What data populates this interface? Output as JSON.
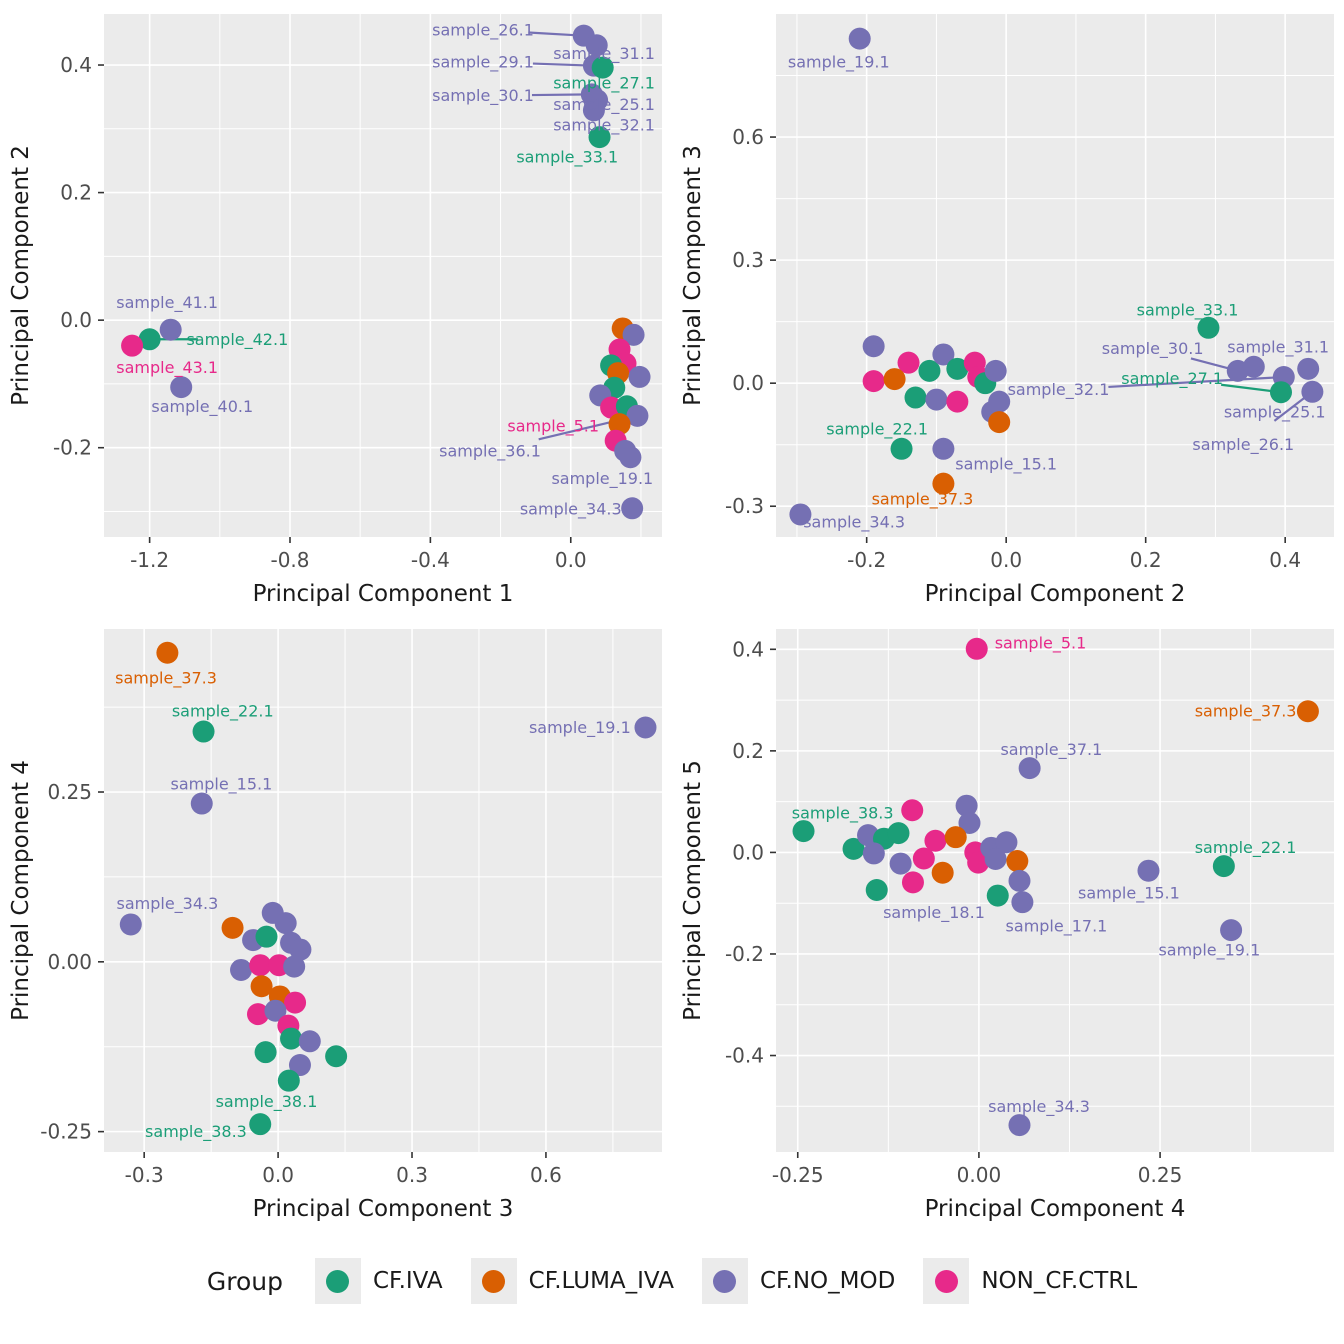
{
  "style": {
    "panel_bg": "#EBEBEB",
    "grid_color": "#FFFFFF",
    "tick_text_color": "#4D4D4D",
    "axis_title_color": "#1A1A1A",
    "tick_mark_color": "#333333"
  },
  "groups": [
    {
      "name": "CF.IVA",
      "color": "#1B9E77"
    },
    {
      "name": "CF.LUMA_IVA",
      "color": "#D95F02"
    },
    {
      "name": "CF.NO_MOD",
      "color": "#7570B3"
    },
    {
      "name": "NON_CF.CTRL",
      "color": "#E7298A"
    }
  ],
  "legend": {
    "title": "Group",
    "entries": [
      {
        "label": "CF.IVA",
        "color": "#1B9E77"
      },
      {
        "label": "CF.LUMA_IVA",
        "color": "#D95F02"
      },
      {
        "label": "CF.NO_MOD",
        "color": "#7570B3"
      },
      {
        "label": "NON_CF.CTRL",
        "color": "#E7298A"
      }
    ]
  },
  "point_format": "[x, y, group_index] or [x, y, group_index, label, label_x, label_y, leader_line]",
  "chart_data": [
    {
      "type": "scatter",
      "xlabel": "Principal Component 1",
      "ylabel": "Principal Component 2",
      "xlim": [
        -1.33,
        0.26
      ],
      "ylim": [
        -0.34,
        0.48
      ],
      "xticks": {
        "values": [
          -1.2,
          -0.8,
          -0.4,
          0.0
        ],
        "labels": [
          "-1.2",
          "-0.8",
          "-0.4",
          "0.0"
        ]
      },
      "yticks": {
        "values": [
          -0.2,
          0.0,
          0.2,
          0.4
        ],
        "labels": [
          "-0.2",
          "0.0",
          "0.2",
          "0.4"
        ]
      },
      "grid": true,
      "points": [
        [
          0.037,
          0.446,
          2,
          "sample_26.1",
          -0.25,
          0.455,
          1
        ],
        [
          0.074,
          0.431,
          2,
          "sample_31.1",
          0.095,
          0.418,
          0
        ],
        [
          0.066,
          0.399,
          2,
          "sample_29.1",
          -0.25,
          0.405,
          1
        ],
        [
          0.091,
          0.396,
          0,
          "sample_27.1",
          0.095,
          0.372,
          0
        ],
        [
          0.06,
          0.354,
          2,
          "sample_30.1",
          -0.25,
          0.352,
          1
        ],
        [
          0.075,
          0.345,
          2,
          "sample_25.1",
          0.095,
          0.338,
          0
        ],
        [
          0.066,
          0.329,
          2,
          "sample_32.1",
          0.095,
          0.306,
          0
        ],
        [
          0.082,
          0.287,
          0,
          "sample_33.1",
          -0.01,
          0.256,
          0
        ],
        [
          -1.14,
          -0.015,
          2,
          "sample_41.1",
          -1.15,
          0.028,
          0
        ],
        [
          -1.2,
          -0.03,
          0,
          "sample_42.1",
          -0.95,
          -0.03,
          1
        ],
        [
          -1.25,
          -0.04,
          3,
          "sample_43.1",
          -1.15,
          -0.074,
          0
        ],
        [
          -1.11,
          -0.105,
          2,
          "sample_40.1",
          -1.05,
          -0.135,
          0
        ],
        [
          0.148,
          -0.013,
          1
        ],
        [
          0.179,
          -0.023,
          2
        ],
        [
          0.139,
          -0.046,
          3
        ],
        [
          0.156,
          -0.068,
          3
        ],
        [
          0.115,
          -0.071,
          0
        ],
        [
          0.135,
          -0.083,
          1
        ],
        [
          0.196,
          -0.089,
          2
        ],
        [
          0.124,
          -0.106,
          0
        ],
        [
          0.084,
          -0.118,
          2
        ],
        [
          0.115,
          -0.137,
          3
        ],
        [
          0.16,
          -0.135,
          0
        ],
        [
          0.19,
          -0.15,
          2,
          "sample_36.1",
          -0.23,
          -0.205,
          1
        ],
        [
          0.139,
          -0.163,
          1
        ],
        [
          0.128,
          -0.189,
          3,
          "sample_5.1",
          -0.05,
          -0.166,
          0
        ],
        [
          0.155,
          -0.205,
          2
        ],
        [
          0.17,
          -0.215,
          2,
          "sample_19.1",
          0.09,
          -0.248,
          0
        ],
        [
          0.175,
          -0.295,
          2,
          "sample_34.3",
          0.0,
          -0.296,
          0
        ]
      ]
    },
    {
      "type": "scatter",
      "xlabel": "Principal Component 2",
      "ylabel": "Principal Component 3",
      "xlim": [
        -0.33,
        0.47
      ],
      "ylim": [
        -0.375,
        0.9
      ],
      "xticks": {
        "values": [
          -0.2,
          0.0,
          0.2,
          0.4
        ],
        "labels": [
          "-0.2",
          "0.0",
          "0.2",
          "0.4"
        ]
      },
      "yticks": {
        "values": [
          -0.3,
          0.0,
          0.3,
          0.6
        ],
        "labels": [
          "-0.3",
          "0.0",
          "0.3",
          "0.6"
        ]
      },
      "grid": true,
      "points": [
        [
          -0.21,
          0.84,
          2,
          "sample_19.1",
          -0.24,
          0.783,
          0
        ],
        [
          -0.19,
          0.09,
          2
        ],
        [
          -0.14,
          0.05,
          3
        ],
        [
          -0.19,
          0.005,
          3
        ],
        [
          -0.16,
          0.01,
          1
        ],
        [
          -0.11,
          0.03,
          0
        ],
        [
          -0.09,
          0.07,
          2
        ],
        [
          -0.13,
          -0.035,
          0
        ],
        [
          -0.1,
          -0.04,
          2
        ],
        [
          -0.07,
          0.035,
          0
        ],
        [
          -0.07,
          -0.045,
          3
        ],
        [
          -0.045,
          0.05,
          3
        ],
        [
          -0.04,
          0.015,
          3
        ],
        [
          -0.03,
          0.0,
          0
        ],
        [
          -0.015,
          0.03,
          2
        ],
        [
          -0.02,
          -0.07,
          2
        ],
        [
          -0.01,
          -0.045,
          2
        ],
        [
          -0.01,
          -0.095,
          1
        ],
        [
          -0.15,
          -0.16,
          0,
          "sample_22.1",
          -0.185,
          -0.112,
          0
        ],
        [
          -0.09,
          -0.16,
          2,
          "sample_15.1",
          0.0,
          -0.197,
          0
        ],
        [
          -0.09,
          -0.245,
          1,
          "sample_37.3",
          -0.12,
          -0.282,
          0
        ],
        [
          -0.295,
          -0.32,
          2,
          "sample_34.3",
          -0.218,
          -0.339,
          0
        ],
        [
          0.29,
          0.135,
          0,
          "sample_33.1",
          0.26,
          0.178,
          0
        ],
        [
          0.332,
          0.03,
          2,
          "sample_30.1",
          0.21,
          0.085,
          1
        ],
        [
          0.355,
          0.04,
          2,
          "sample_31.1",
          0.39,
          0.088,
          0
        ],
        [
          0.398,
          0.015,
          2,
          "sample_32.1",
          0.075,
          -0.016,
          1
        ],
        [
          0.394,
          -0.022,
          0,
          "sample_27.1",
          0.238,
          0.011,
          1
        ],
        [
          0.433,
          0.035,
          2,
          "sample_25.1",
          0.385,
          -0.07,
          0
        ],
        [
          0.439,
          -0.021,
          2,
          "sample_26.1",
          0.34,
          -0.15,
          1
        ]
      ]
    },
    {
      "type": "scatter",
      "xlabel": "Principal Component 3",
      "ylabel": "Principal Component 4",
      "xlim": [
        -0.39,
        0.86
      ],
      "ylim": [
        -0.28,
        0.49
      ],
      "xticks": {
        "values": [
          -0.3,
          0.0,
          0.3,
          0.6
        ],
        "labels": [
          "-0.3",
          "0.0",
          "0.3",
          "0.6"
        ]
      },
      "yticks": {
        "values": [
          -0.25,
          0.0,
          0.25
        ],
        "labels": [
          "-0.25",
          "0.00",
          "0.25"
        ]
      },
      "grid": true,
      "points": [
        [
          -0.248,
          0.455,
          1,
          "sample_37.3",
          -0.251,
          0.418,
          0
        ],
        [
          -0.167,
          0.339,
          0,
          "sample_22.1",
          -0.124,
          0.369,
          0
        ],
        [
          0.823,
          0.345,
          2,
          "sample_19.1",
          0.676,
          0.345,
          0
        ],
        [
          -0.171,
          0.233,
          2,
          "sample_15.1",
          -0.127,
          0.262,
          0
        ],
        [
          -0.33,
          0.055,
          2,
          "sample_34.3",
          -0.248,
          0.086,
          0
        ],
        [
          -0.102,
          0.05,
          1
        ],
        [
          -0.012,
          0.072,
          2
        ],
        [
          0.017,
          0.057,
          2
        ],
        [
          -0.056,
          0.032,
          2
        ],
        [
          -0.026,
          0.037,
          0
        ],
        [
          0.029,
          0.028,
          2
        ],
        [
          0.05,
          0.018,
          2
        ],
        [
          -0.083,
          -0.012,
          2
        ],
        [
          -0.04,
          -0.005,
          3
        ],
        [
          0.002,
          -0.005,
          3
        ],
        [
          0.036,
          -0.007,
          2
        ],
        [
          -0.037,
          -0.036,
          1
        ],
        [
          0.004,
          -0.051,
          1
        ],
        [
          0.038,
          -0.06,
          3
        ],
        [
          -0.045,
          -0.077,
          3
        ],
        [
          -0.006,
          -0.072,
          2
        ],
        [
          0.023,
          -0.094,
          3
        ],
        [
          0.029,
          -0.113,
          0
        ],
        [
          0.071,
          -0.117,
          2
        ],
        [
          -0.028,
          -0.133,
          0
        ],
        [
          0.13,
          -0.139,
          0
        ],
        [
          0.049,
          -0.152,
          2
        ],
        [
          0.024,
          -0.175,
          0,
          "sample_38.1",
          -0.026,
          -0.206,
          0
        ],
        [
          -0.04,
          -0.239,
          0,
          "sample_38.3",
          -0.184,
          -0.25,
          0
        ]
      ]
    },
    {
      "type": "scatter",
      "xlabel": "Principal Component 4",
      "ylabel": "Principal Component 5",
      "xlim": [
        -0.28,
        0.49
      ],
      "ylim": [
        -0.59,
        0.44
      ],
      "xticks": {
        "values": [
          -0.25,
          0.0,
          0.25
        ],
        "labels": [
          "-0.25",
          "0.00",
          "0.25"
        ]
      },
      "yticks": {
        "values": [
          -0.4,
          -0.2,
          0.0,
          0.2,
          0.4
        ],
        "labels": [
          "-0.4",
          "-0.2",
          "0.0",
          "0.2",
          "0.4"
        ]
      },
      "grid": true,
      "points": [
        [
          -0.003,
          0.401,
          3,
          "sample_5.1",
          0.085,
          0.412,
          0
        ],
        [
          0.454,
          0.278,
          1,
          "sample_37.3",
          0.368,
          0.279,
          0
        ],
        [
          0.07,
          0.166,
          2,
          "sample_37.1",
          0.1,
          0.203,
          0
        ],
        [
          -0.092,
          0.083,
          3
        ],
        [
          -0.017,
          0.092,
          2
        ],
        [
          -0.013,
          0.058,
          2
        ],
        [
          -0.242,
          0.042,
          0,
          "sample_38.3",
          -0.188,
          0.078,
          0
        ],
        [
          -0.173,
          0.007,
          0
        ],
        [
          -0.153,
          0.034,
          2
        ],
        [
          -0.131,
          0.027,
          0
        ],
        [
          -0.145,
          -0.002,
          2
        ],
        [
          -0.111,
          0.038,
          0
        ],
        [
          -0.06,
          0.023,
          3
        ],
        [
          -0.032,
          0.03,
          1
        ],
        [
          -0.108,
          -0.022,
          2
        ],
        [
          -0.076,
          -0.012,
          3
        ],
        [
          -0.05,
          -0.04,
          1
        ],
        [
          -0.005,
          0.0,
          3
        ],
        [
          -0.001,
          -0.02,
          3
        ],
        [
          0.017,
          0.009,
          2
        ],
        [
          0.038,
          0.02,
          2
        ],
        [
          0.023,
          -0.013,
          2
        ],
        [
          0.053,
          -0.017,
          1
        ],
        [
          -0.091,
          -0.059,
          3
        ],
        [
          -0.141,
          -0.074,
          0
        ],
        [
          0.026,
          -0.085,
          0
        ],
        [
          0.056,
          -0.056,
          2,
          "sample_18.1",
          -0.062,
          -0.118,
          0
        ],
        [
          0.06,
          -0.098,
          2,
          "sample_17.1",
          0.107,
          -0.145,
          0
        ],
        [
          0.234,
          -0.036,
          2,
          "sample_15.1",
          0.207,
          -0.08,
          0
        ],
        [
          0.338,
          -0.027,
          0,
          "sample_22.1",
          0.368,
          0.01,
          0
        ],
        [
          0.348,
          -0.153,
          2,
          "sample_19.1",
          0.318,
          -0.192,
          0
        ],
        [
          0.056,
          -0.537,
          2,
          "sample_34.3",
          0.083,
          -0.5,
          0
        ]
      ]
    }
  ]
}
